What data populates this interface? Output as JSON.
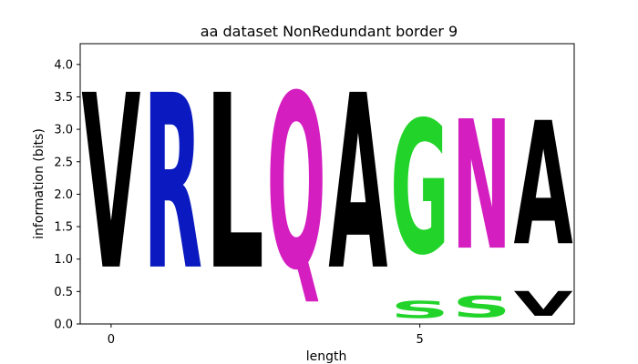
{
  "chart_data": {
    "type": "sequence-logo",
    "title": "aa dataset NonRedundant border 9",
    "xlabel": "length",
    "ylabel": "information (bits)",
    "xlim": [
      -0.5,
      7.5
    ],
    "ylim": [
      0,
      4.32
    ],
    "x_ticks": [
      0,
      5
    ],
    "y_ticks": [
      0.0,
      0.5,
      1.0,
      1.5,
      2.0,
      2.5,
      3.0,
      3.5,
      4.0
    ],
    "grid": false,
    "positions": [
      {
        "x": 0,
        "letters": [
          {
            "char": "V",
            "bits": 4.32,
            "color": "#000000"
          }
        ]
      },
      {
        "x": 1,
        "letters": [
          {
            "char": "R",
            "bits": 4.32,
            "color": "#0a1ac0"
          }
        ]
      },
      {
        "x": 2,
        "letters": [
          {
            "char": "L",
            "bits": 4.32,
            "color": "#000000"
          }
        ]
      },
      {
        "x": 3,
        "letters": [
          {
            "char": "Q",
            "bits": 4.32,
            "color": "#d41ec0"
          }
        ]
      },
      {
        "x": 4,
        "letters": [
          {
            "char": "A",
            "bits": 4.32,
            "color": "#000000"
          }
        ]
      },
      {
        "x": 5,
        "letters": [
          {
            "char": "S",
            "bits": 0.43,
            "color": "#22d42a"
          },
          {
            "char": "G",
            "bits": 3.3,
            "color": "#22d42a"
          }
        ]
      },
      {
        "x": 6,
        "letters": [
          {
            "char": "S",
            "bits": 0.52,
            "color": "#22d42a"
          },
          {
            "char": "N",
            "bits": 3.2,
            "color": "#d41ec0"
          }
        ]
      },
      {
        "x": 7,
        "letters": [
          {
            "char": "V",
            "bits": 0.62,
            "color": "#000000"
          },
          {
            "char": "A",
            "bits": 3.05,
            "color": "#000000"
          }
        ]
      }
    ]
  }
}
